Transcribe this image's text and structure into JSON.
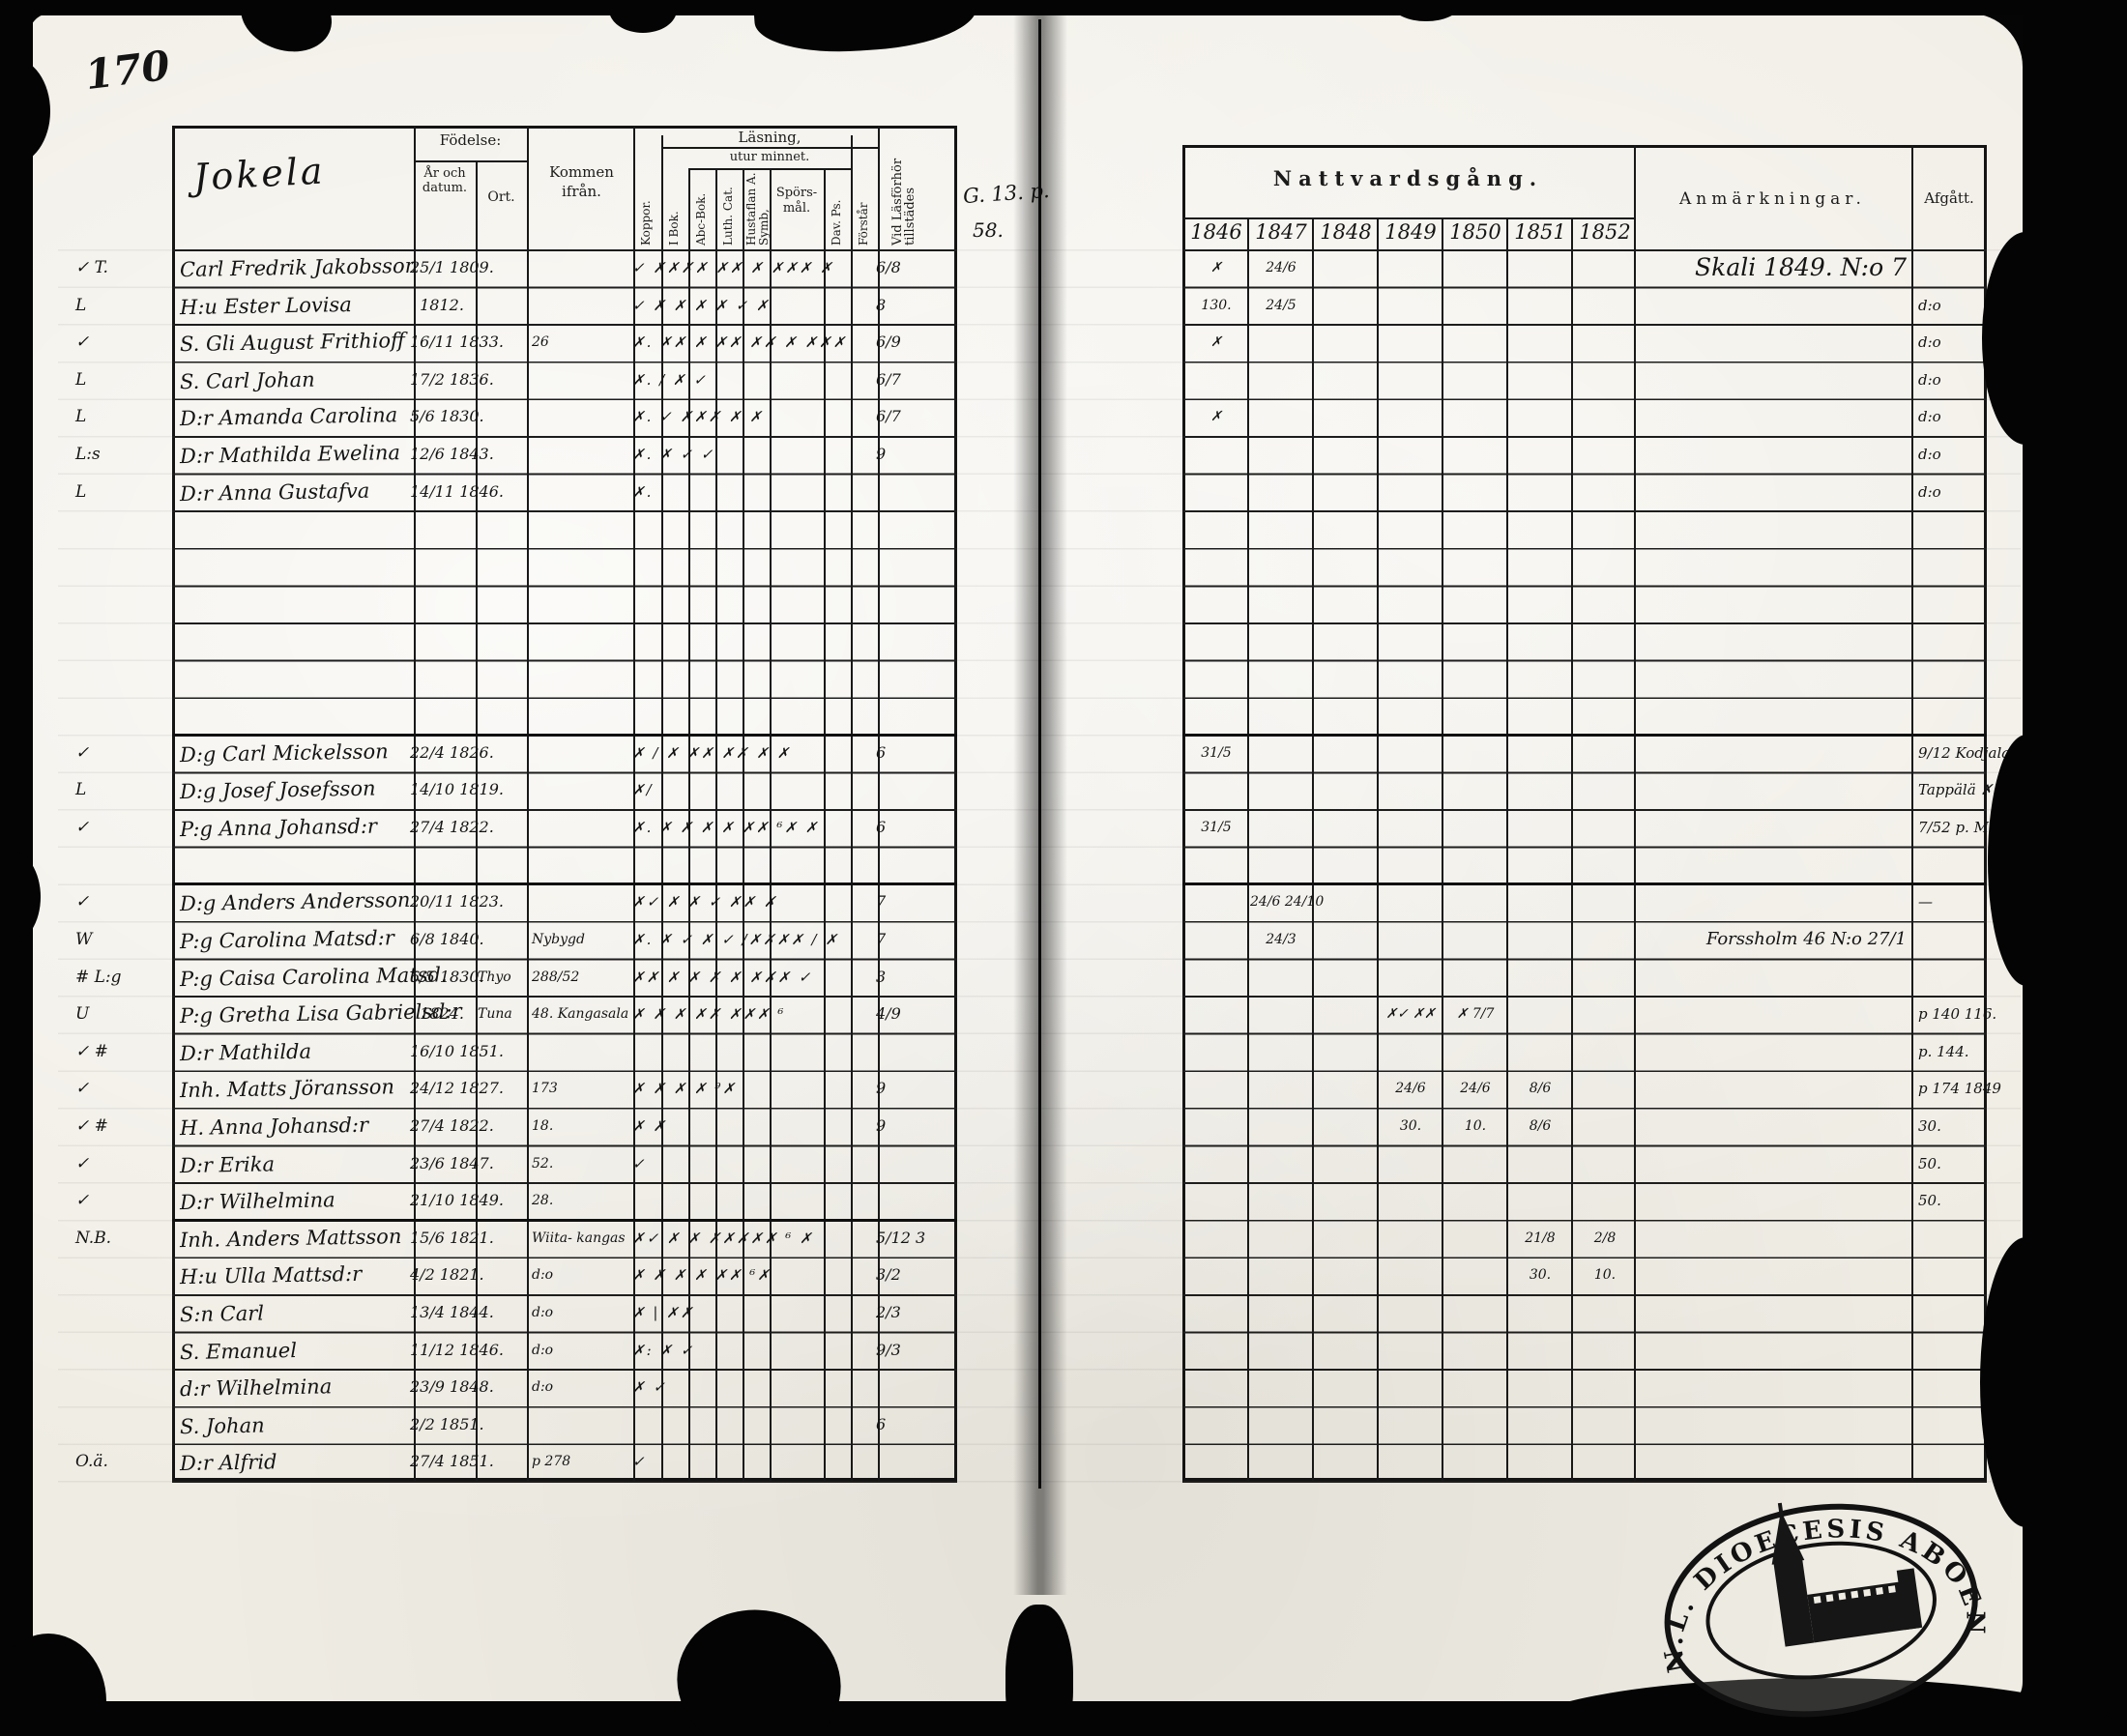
{
  "page": {
    "page_number": "170",
    "place_name": "Jokela",
    "side_note_1": "G. 13. p.",
    "side_note_2": "58.",
    "ink_color": "#141414",
    "paper_color": "#efece3"
  },
  "left_header": {
    "fodelse": "Födelse:",
    "ar_och_datum": "År och datum.",
    "ort": "Ort.",
    "kommen_ifran": "Kommen ifrån.",
    "koppor": "Koppor.",
    "i_bok": "I Bok.",
    "lasning": "Läsning,",
    "utur_minnet": "utur minnet.",
    "abc_bok": "Abc-Bok.",
    "luth_cat": "Luth. Cat.",
    "hustaflan": "Hustaflan A. Symb,",
    "sporsmal": "Spörs-mål.",
    "dav_ps": "Dav. Ps.",
    "forstar": "Förstår",
    "vid_lasforhor": "Vid Läsförhör tillstädes"
  },
  "right_header": {
    "nattvardsgang": "Nattvardsgång.",
    "years": [
      "1846",
      "1847",
      "1848",
      "1849",
      "1850",
      "1851",
      "1852"
    ],
    "anmarkningar": "Anmärkningar.",
    "afgatt": "Afgått."
  },
  "stamp": {
    "ring_text": "N.L. DIOECESIS ABOENSIS. M.",
    "symbol": "church-with-tower"
  },
  "rows": [
    {
      "margin": "✓ T.",
      "name": "Carl Fredrik Jakobsson",
      "date": "25/1 1809.",
      "marks": "✓ ✗✗✗✗ ✗✗ ✗ ✗✗✗  ✗",
      "forhor": "6/8",
      "nv": [
        "✗",
        "24/6",
        "",
        "",
        "",
        "",
        ""
      ],
      "anm": "Skali 1849. N:o 7"
    },
    {
      "margin": "L",
      "name": "H:u Ester Lovisa",
      "date": "1812.",
      "marks": "✓ ✗ ✗ ✗ ✗ ✓  ✗",
      "forhor": "8",
      "nv": [
        "130.",
        "24/5",
        "",
        "",
        "",
        "",
        ""
      ],
      "afg": "d:o"
    },
    {
      "margin": "✓",
      "name": "S. Gli August Frithioff",
      "date": "16/11 1833.",
      "kommen": "26",
      "marks": "✗. ✗✗ ✗ ✗✗ ✗✗ ✗ ✗✗✗",
      "forhor": "6/9",
      "nv": [
        "✗",
        "",
        "",
        "",
        "",
        "",
        ""
      ],
      "afg": "d:o"
    },
    {
      "margin": "L",
      "name": "S. Carl Johan",
      "date": "17/2 1836.",
      "marks": "✗. / ✗ ✓",
      "forhor": "6/7",
      "afg": "d:o"
    },
    {
      "margin": "L",
      "name": "D:r Amanda Carolina",
      "date": "5/6 1830.",
      "marks": "✗. ✓  ✗✗✗ ✗ ✗",
      "forhor": "6/7",
      "nv": [
        "✗",
        "",
        "",
        "",
        "",
        "",
        ""
      ],
      "afg": "d:o"
    },
    {
      "margin": "L:s",
      "name": "D:r Mathilda Ewelina",
      "date": "12/6 1843.",
      "marks": "✗. ✗ ✓ ✓",
      "forhor": "9",
      "afg": "d:o"
    },
    {
      "margin": "L",
      "name": "D:r Anna Gustafva",
      "date": "14/11 1846.",
      "marks": "✗.",
      "afg": "d:o"
    },
    {},
    {},
    {},
    {},
    {},
    {},
    {
      "margin": "✓",
      "name": "D:g Carl Mickelsson",
      "date": "22/4 1826.",
      "marks": "✗ / ✗ ✗✗ ✗✗ ✗  ✗",
      "forhor": "6",
      "nv": [
        "31/5",
        "",
        "",
        "",
        "",
        "",
        ""
      ],
      "afg": "9/12 Kodjala"
    },
    {
      "margin": "L",
      "name": "D:g Josef Josefsson",
      "date": "14/10 1819.",
      "marks": "✗/",
      "afg": "Tappälä ✗"
    },
    {
      "margin": "✓",
      "name": "P:g Anna Johansd:r",
      "date": "27/4 1822.",
      "marks": "✗. ✗ ✗ ✗ ✗ ✗✗ ⁶✗  ✗",
      "forhor": "6",
      "nv": [
        "31/5",
        "",
        "",
        "",
        "",
        "",
        ""
      ],
      "afg": "7/52 p. M."
    },
    {},
    {
      "margin": "✓",
      "name": "D:g Anders Andersson",
      "date": "20/11 1823.",
      "marks": "✗✓ ✗ ✗ ✓ ✗✗  ✗",
      "forhor": "7",
      "nv": [
        "",
        "24/6 24/10",
        "",
        "",
        "",
        "",
        ""
      ],
      "afg": "—"
    },
    {
      "margin": "W",
      "name": "P:g Carolina Matsd:r",
      "date": "6/8 1840.",
      "kommen": "Nybygd",
      "marks": "✗. ✗ ✓ ✗ ✓ /✗✗✗✗ / ✗",
      "forhor": "7",
      "nv": [
        "",
        "24/3",
        "",
        "",
        "",
        "",
        ""
      ],
      "anm": "Forssholm 46 N:o 27/1"
    },
    {
      "margin": "# L:g",
      "name": "P:g Caisa Carolina Matsd.",
      "date": "6/5 1830.",
      "ort": "Thyo",
      "kommen": "288/52",
      "marks": "✗✗ ✗ ✗ ✗ ✗ ✗✗✗ ✓",
      "forhor": "3"
    },
    {
      "margin": "U",
      "name": "P:g Gretha Lisa Gabrielsd:r",
      "date": "1824.",
      "ort": "Tuna",
      "kommen": "48. Kangasala",
      "marks": "✗ ✗ ✗ ✗✗ ✗✗✗ ⁶",
      "forhor": "4/9",
      "nv": [
        "",
        "",
        "",
        "✗✓ ✗✗",
        "✗  7/7",
        "",
        ""
      ],
      "afg": "p 140 116."
    },
    {
      "margin": "✓ #",
      "name": "D:r Mathilda",
      "date": "16/10 1851.",
      "afg": "p. 144."
    },
    {
      "margin": "✓",
      "name": "Inh. Matts Jöransson",
      "date": "24/12 1827.",
      "kommen": "173",
      "marks": "✗ ✗ ✗ ✗ ⁹✗",
      "forhor": "9",
      "nv": [
        "",
        "",
        "",
        "24/6",
        "24/6",
        "8/6",
        ""
      ],
      "afg": "p 174 1849"
    },
    {
      "margin": "✓ #",
      "name": "H. Anna Johansd:r",
      "date": "27/4 1822.",
      "kommen": "18.",
      "marks": "✗ ✗",
      "forhor": "9",
      "nv": [
        "",
        "",
        "",
        "30.",
        "10.",
        "8/6",
        ""
      ],
      "afg": "30."
    },
    {
      "margin": "✓",
      "name": "D:r Erika",
      "date": "23/6 1847.",
      "kommen": "52.",
      "marks": "✓",
      "afg": "50."
    },
    {
      "margin": "✓",
      "name": "D:r Wilhelmina",
      "date": "21/10 1849.",
      "kommen": "28.",
      "afg": "50."
    },
    {
      "margin": "N.B.",
      "name": "Inh. Anders Mattsson",
      "date": "15/6 1821.",
      "kommen": "Wiita- kangas",
      "marks": "✗✓ ✗ ✗ ✗✗✗✗✗ ⁶  ✗",
      "forhor": "5/12 3",
      "nv": [
        "",
        "",
        "",
        "",
        "",
        "21/8",
        "2/8"
      ]
    },
    {
      "name": "H:u Ulla Mattsd:r",
      "date": "4/2 1821.",
      "kommen": "d:o",
      "marks": "✗ ✗ ✗ ✗ ✗✗ ⁶✗",
      "forhor": "3/2",
      "nv": [
        "",
        "",
        "",
        "",
        "",
        "30.",
        "10."
      ]
    },
    {
      "name": "S:n Carl",
      "date": "13/4 1844.",
      "kommen": "d:o",
      "marks": "✗ | ✗✗",
      "forhor": "2/3"
    },
    {
      "name": "S. Emanuel",
      "date": "11/12 1846.",
      "kommen": "d:o",
      "marks": "✗: ✗ ✓",
      "forhor": "9/3"
    },
    {
      "name": "d:r Wilhelmina",
      "date": "23/9 1848.",
      "kommen": "d:o",
      "marks": "✗ ✓"
    },
    {
      "name": "S. Johan",
      "date": "2/2 1851.",
      "forhor": "6"
    },
    {
      "margin": "O.ä.",
      "name": "D:r Alfrid",
      "date": "27/4 1851.",
      "kommen": "p 278",
      "marks": "✓"
    }
  ]
}
